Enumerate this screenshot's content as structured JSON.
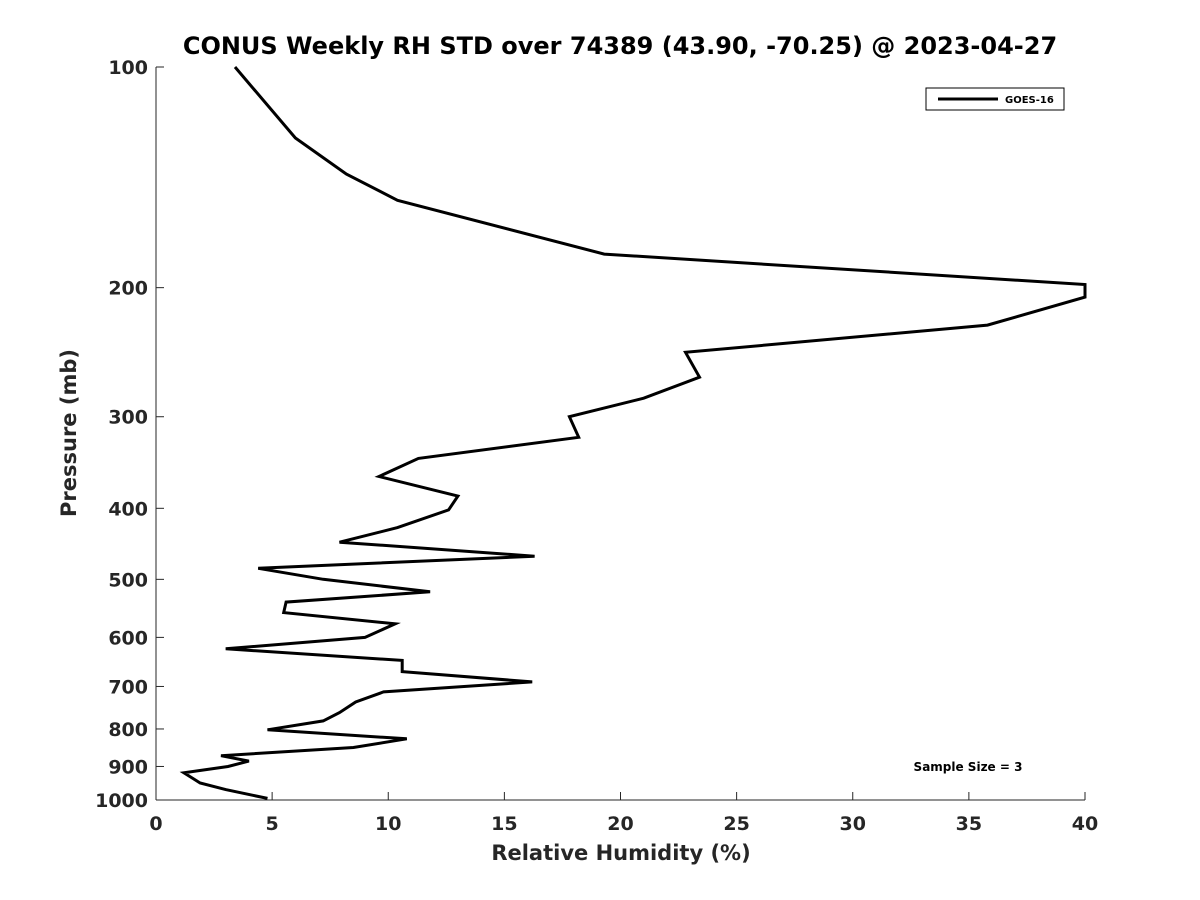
{
  "chart_data": {
    "type": "line",
    "title": "CONUS Weekly RH STD over 74389 (43.90, -70.25) @ 2023-04-27",
    "xlabel": "Relative Humidity (%)",
    "ylabel": "Pressure (mb)",
    "xlim": [
      0,
      40
    ],
    "ylim": [
      1000,
      100
    ],
    "yscale": "log",
    "y_reversed": true,
    "grid": false,
    "legend_position": "top-right",
    "x_ticks": [
      0,
      5,
      10,
      15,
      20,
      25,
      30,
      35,
      40
    ],
    "y_ticks": [
      100,
      200,
      300,
      400,
      500,
      600,
      700,
      800,
      900,
      1000
    ],
    "annotation": "Sample Size = 3",
    "series": [
      {
        "name": "GOES-16",
        "color": "#000000",
        "points": [
          [
            3.4,
            100
          ],
          [
            6.0,
            125
          ],
          [
            8.2,
            140
          ],
          [
            10.4,
            152
          ],
          [
            19.3,
            180
          ],
          [
            40.0,
            198
          ],
          [
            40.0,
            206
          ],
          [
            35.8,
            225
          ],
          [
            22.8,
            245
          ],
          [
            23.4,
            265
          ],
          [
            21.0,
            283
          ],
          [
            17.8,
            300
          ],
          [
            18.2,
            320
          ],
          [
            11.3,
            342
          ],
          [
            9.6,
            362
          ],
          [
            13.0,
            385
          ],
          [
            12.6,
            402
          ],
          [
            10.4,
            425
          ],
          [
            7.9,
            445
          ],
          [
            16.3,
            465
          ],
          [
            4.4,
            483
          ],
          [
            7.2,
            500
          ],
          [
            11.8,
            520
          ],
          [
            5.6,
            537
          ],
          [
            5.5,
            555
          ],
          [
            10.3,
            575
          ],
          [
            9.0,
            600
          ],
          [
            3.0,
            622
          ],
          [
            10.6,
            645
          ],
          [
            10.6,
            668
          ],
          [
            16.2,
            690
          ],
          [
            9.8,
            712
          ],
          [
            8.6,
            735
          ],
          [
            7.9,
            760
          ],
          [
            7.2,
            780
          ],
          [
            4.8,
            802
          ],
          [
            10.8,
            825
          ],
          [
            8.5,
            848
          ],
          [
            2.8,
            870
          ],
          [
            4.0,
            885
          ],
          [
            3.1,
            900
          ],
          [
            1.2,
            918
          ],
          [
            1.6,
            935
          ],
          [
            1.9,
            948
          ],
          [
            3.0,
            968
          ],
          [
            4.8,
            995
          ]
        ]
      }
    ]
  }
}
